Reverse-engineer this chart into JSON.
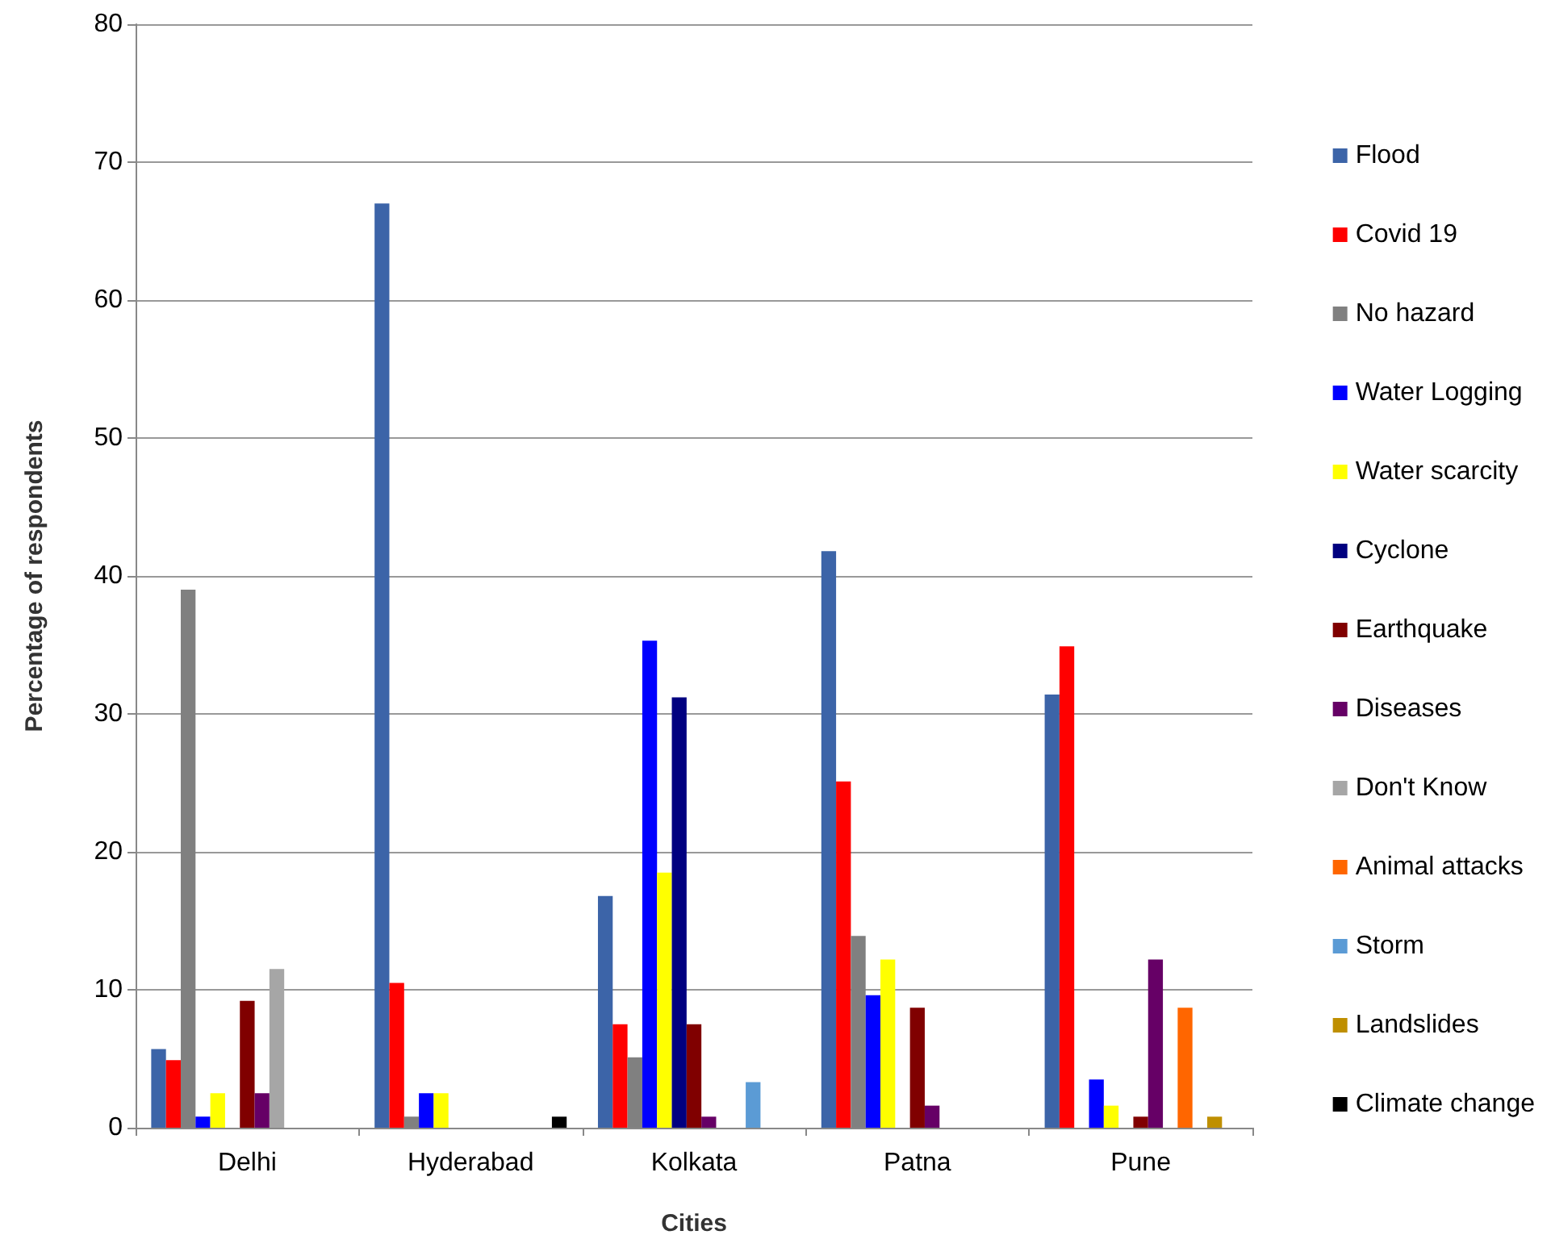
{
  "chart_data": {
    "type": "bar",
    "xlabel": "Cities",
    "ylabel": "Percentage of respondents",
    "categories": [
      "Delhi",
      "Hyderabad",
      "Kolkata",
      "Patna",
      "Pune"
    ],
    "ylim": [
      0,
      80
    ],
    "yticks": [
      0,
      10,
      20,
      30,
      40,
      50,
      60,
      70,
      80
    ],
    "grid": "y",
    "legend": "right",
    "series": [
      {
        "name": "Flood",
        "color": "#3c64a8",
        "values": [
          5.7,
          67,
          16.8,
          41.8,
          31.4
        ]
      },
      {
        "name": "Covid 19",
        "color": "#ff0000",
        "values": [
          4.9,
          10.5,
          7.5,
          25.1,
          34.9
        ]
      },
      {
        "name": "No hazard",
        "color": "#808080",
        "values": [
          39,
          0.8,
          5.1,
          13.9,
          0
        ]
      },
      {
        "name": "Water Logging",
        "color": "#0000ff",
        "values": [
          0.8,
          2.5,
          35.3,
          9.6,
          3.5
        ]
      },
      {
        "name": "Water scarcity",
        "color": "#ffff00",
        "values": [
          2.5,
          2.5,
          18.5,
          12.2,
          1.6
        ]
      },
      {
        "name": "Cyclone",
        "color": "#000080",
        "values": [
          0,
          0,
          31.2,
          0,
          0
        ]
      },
      {
        "name": "Earthquake",
        "color": "#800000",
        "values": [
          9.2,
          0,
          7.5,
          8.7,
          0.8
        ]
      },
      {
        "name": "Diseases",
        "color": "#660066",
        "values": [
          2.5,
          0,
          0.8,
          1.6,
          12.2
        ]
      },
      {
        "name": "Don't Know",
        "color": "#a6a6a6",
        "values": [
          11.5,
          0,
          0,
          0,
          0
        ]
      },
      {
        "name": "Animal attacks",
        "color": "#ff6600",
        "values": [
          0,
          0,
          0,
          0,
          8.7
        ]
      },
      {
        "name": "Storm",
        "color": "#5b9bd5",
        "values": [
          0,
          0,
          3.3,
          0,
          0
        ]
      },
      {
        "name": "Landslides",
        "color": "#bf8f00",
        "values": [
          0,
          0,
          0,
          0,
          0.8
        ]
      },
      {
        "name": "Climate change",
        "color": "#000000",
        "values": [
          0,
          0.8,
          0,
          0,
          0
        ]
      }
    ]
  }
}
